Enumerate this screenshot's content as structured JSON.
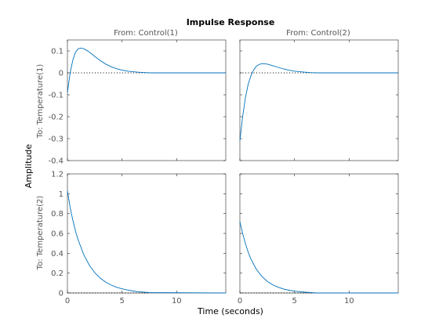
{
  "chart_data": {
    "type": "line",
    "title": "Impulse Response",
    "xlabel": "Time (seconds)",
    "ylabel": "Amplitude",
    "column_titles": [
      "From: Control(1)",
      "From: Control(2)"
    ],
    "row_titles": [
      "To: Temperature(1)",
      "To: Temperature(2)"
    ],
    "xlim": [
      0,
      14.5
    ],
    "xticks": [
      0,
      5,
      10
    ],
    "rows": [
      {
        "ylim": [
          -0.4,
          0.15
        ],
        "yticks": [
          -0.4,
          -0.3,
          -0.2,
          -0.1,
          0,
          0.1
        ]
      },
      {
        "ylim": [
          0,
          1.2
        ],
        "yticks": [
          0,
          0.2,
          0.4,
          0.6,
          0.8,
          1,
          1.2
        ]
      }
    ],
    "series": [
      {
        "row": 0,
        "col": 0,
        "x": [
          0,
          0.25,
          0.5,
          0.75,
          1.0,
          1.25,
          1.5,
          2.0,
          2.5,
          3.0,
          3.5,
          4.0,
          4.5,
          5.0,
          5.5,
          6.0,
          6.5,
          7.0,
          7.5
        ],
        "y": [
          -0.09,
          0.0,
          0.06,
          0.095,
          0.11,
          0.113,
          0.11,
          0.095,
          0.075,
          0.056,
          0.04,
          0.028,
          0.019,
          0.012,
          0.008,
          0.005,
          0.003,
          0.0015,
          0.0
        ]
      },
      {
        "row": 0,
        "col": 1,
        "x": [
          0,
          0.25,
          0.5,
          0.75,
          1.0,
          1.25,
          1.5,
          1.75,
          2.0,
          2.5,
          3.0,
          3.5,
          4.0,
          4.5,
          5.0,
          5.5,
          6.0,
          6.5,
          7.0
        ],
        "y": [
          -0.31,
          -0.2,
          -0.115,
          -0.055,
          -0.015,
          0.012,
          0.03,
          0.038,
          0.042,
          0.04,
          0.033,
          0.025,
          0.018,
          0.012,
          0.008,
          0.005,
          0.003,
          0.001,
          0.0
        ]
      },
      {
        "row": 1,
        "col": 0,
        "x": [
          0,
          0.25,
          0.5,
          0.75,
          1.0,
          1.5,
          2.0,
          2.5,
          3.0,
          3.5,
          4.0,
          4.5,
          5.0,
          5.5,
          6.0,
          6.5,
          7.0,
          7.5
        ],
        "y": [
          1.03,
          0.86,
          0.73,
          0.62,
          0.53,
          0.385,
          0.28,
          0.205,
          0.15,
          0.11,
          0.08,
          0.058,
          0.042,
          0.03,
          0.02,
          0.013,
          0.008,
          0.004
        ]
      },
      {
        "row": 1,
        "col": 1,
        "x": [
          0,
          0.25,
          0.5,
          0.75,
          1.0,
          1.5,
          2.0,
          2.5,
          3.0,
          3.5,
          4.0,
          4.5,
          5.0,
          5.5,
          6.0,
          6.5,
          7.0
        ],
        "y": [
          0.72,
          0.6,
          0.5,
          0.415,
          0.345,
          0.24,
          0.168,
          0.118,
          0.083,
          0.058,
          0.04,
          0.028,
          0.019,
          0.012,
          0.008,
          0.004,
          0.0
        ]
      }
    ]
  }
}
